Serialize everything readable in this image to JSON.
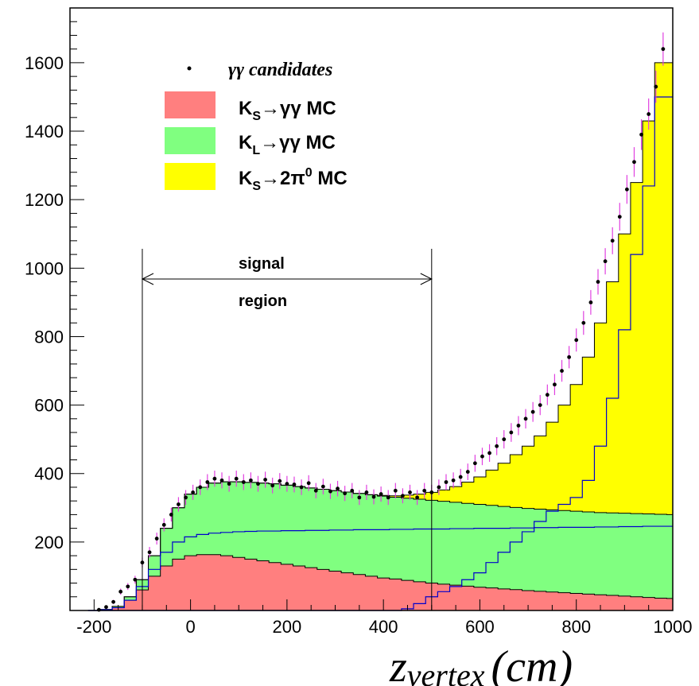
{
  "chart_data": {
    "type": "histogram",
    "xlabel": "z",
    "xlabel_sub": "vertex",
    "xlabel_unit": "(cm)",
    "xlim": [
      -250,
      1000
    ],
    "ylim": [
      0,
      1760
    ],
    "x_ticks": [
      -200,
      0,
      200,
      400,
      600,
      800,
      1000
    ],
    "x_tick_labels": [
      "-200",
      "0",
      "200",
      "400",
      "600",
      "800",
      "1000"
    ],
    "y_ticks": [
      200,
      400,
      600,
      800,
      1000,
      1200,
      1400,
      1600
    ],
    "y_tick_labels": [
      "200",
      "400",
      "600",
      "800",
      "1000",
      "1200",
      "1400",
      "1600"
    ],
    "legend_placement": "top-left",
    "legend": [
      {
        "label_main": "γγ",
        "label_rest": " candidates",
        "style": "italic",
        "marker": "point",
        "color": "#000000"
      },
      {
        "label_main": "K",
        "sub": "S",
        "label_rest": "→γγ MC",
        "marker": "fill",
        "color": "#ff7f7f"
      },
      {
        "label_main": "K",
        "sub": "L",
        "label_rest": "→γγ MC",
        "marker": "fill",
        "color": "#80ff80"
      },
      {
        "label_main": "K",
        "sub": "S",
        "label_rest": "→2π",
        "sup": "0",
        "label_tail": " MC",
        "marker": "fill",
        "color": "#ffff00"
      }
    ],
    "annotation": {
      "line1": "signal",
      "line2": "region",
      "x_range": [
        -100,
        500
      ]
    },
    "x": [
      -200,
      -175,
      -150,
      -125,
      -100,
      -75,
      -50,
      -25,
      0,
      25,
      50,
      75,
      100,
      125,
      150,
      175,
      200,
      225,
      250,
      275,
      300,
      325,
      350,
      375,
      400,
      425,
      450,
      475,
      500,
      525,
      550,
      575,
      600,
      625,
      650,
      675,
      700,
      725,
      750,
      775,
      800,
      825,
      850,
      875,
      900,
      925,
      950,
      975,
      1000
    ],
    "series": [
      {
        "name": "K_S→γγ MC",
        "color": "#ff7f7f",
        "values": [
          0,
          2,
          8,
          30,
          60,
          100,
          130,
          150,
          160,
          163,
          163,
          160,
          155,
          150,
          145,
          140,
          135,
          130,
          125,
          120,
          115,
          110,
          105,
          100,
          95,
          92,
          88,
          84,
          80,
          77,
          74,
          71,
          68,
          66,
          63,
          61,
          58,
          56,
          54,
          52,
          50,
          48,
          46,
          44,
          42,
          40,
          38,
          36,
          35
        ]
      },
      {
        "name": "K_L→γγ MC",
        "color": "#80ff80",
        "values": [
          0,
          3,
          12,
          40,
          90,
          160,
          240,
          300,
          340,
          360,
          372,
          376,
          376,
          374,
          372,
          370,
          366,
          362,
          358,
          354,
          350,
          346,
          342,
          338,
          334,
          331,
          328,
          325,
          322,
          319,
          316,
          313,
          310,
          307,
          304,
          301,
          298,
          296,
          294,
          292,
          290,
          288,
          286,
          285,
          284,
          283,
          282,
          281,
          280
        ]
      },
      {
        "name": "K_S→2π0 MC",
        "color": "#ffff00",
        "values": [
          0,
          3,
          12,
          40,
          90,
          160,
          240,
          300,
          340,
          360,
          372,
          376,
          376,
          374,
          372,
          370,
          366,
          362,
          358,
          354,
          350,
          346,
          342,
          338,
          336,
          335,
          337,
          340,
          345,
          352,
          362,
          375,
          390,
          410,
          430,
          455,
          480,
          510,
          550,
          600,
          660,
          740,
          840,
          960,
          1100,
          1250,
          1430,
          1600,
          1600
        ]
      },
      {
        "name": "blue outline",
        "color": "#0000cc",
        "values": [
          0,
          2,
          8,
          30,
          70,
          120,
          170,
          200,
          215,
          222,
          226,
          228,
          230,
          231,
          232,
          232,
          233,
          233,
          234,
          234,
          235,
          235,
          236,
          236,
          236,
          237,
          237,
          238,
          238,
          238,
          239,
          239,
          240,
          240,
          240,
          241,
          241,
          242,
          242,
          243,
          243,
          243,
          244,
          244,
          245,
          245,
          246,
          246,
          246
        ]
      },
      {
        "name": "blue K_S 2π0",
        "color": "#0000cc",
        "values": [
          0,
          0,
          0,
          0,
          0,
          0,
          0,
          0,
          0,
          0,
          0,
          0,
          0,
          0,
          0,
          0,
          0,
          0,
          0,
          0,
          0,
          0,
          0,
          0,
          0,
          0,
          5,
          20,
          40,
          55,
          70,
          90,
          110,
          140,
          170,
          200,
          230,
          260,
          290,
          310,
          330,
          380,
          480,
          620,
          820,
          1040,
          1240,
          1500,
          1500
        ]
      }
    ],
    "candidates": [
      {
        "x": -190,
        "y": 2
      },
      {
        "x": -175,
        "y": 10
      },
      {
        "x": -160,
        "y": 25
      },
      {
        "x": -145,
        "y": 55
      },
      {
        "x": -130,
        "y": 70
      },
      {
        "x": -115,
        "y": 90
      },
      {
        "x": -100,
        "y": 140
      },
      {
        "x": -85,
        "y": 170
      },
      {
        "x": -70,
        "y": 210
      },
      {
        "x": -55,
        "y": 250
      },
      {
        "x": -40,
        "y": 280
      },
      {
        "x": -25,
        "y": 310
      },
      {
        "x": -10,
        "y": 330
      },
      {
        "x": 5,
        "y": 345
      },
      {
        "x": 20,
        "y": 360
      },
      {
        "x": 35,
        "y": 375
      },
      {
        "x": 50,
        "y": 385
      },
      {
        "x": 65,
        "y": 380
      },
      {
        "x": 80,
        "y": 370
      },
      {
        "x": 95,
        "y": 385
      },
      {
        "x": 110,
        "y": 375
      },
      {
        "x": 125,
        "y": 380
      },
      {
        "x": 140,
        "y": 370
      },
      {
        "x": 155,
        "y": 382
      },
      {
        "x": 170,
        "y": 365
      },
      {
        "x": 185,
        "y": 378
      },
      {
        "x": 200,
        "y": 370
      },
      {
        "x": 215,
        "y": 368
      },
      {
        "x": 230,
        "y": 360
      },
      {
        "x": 245,
        "y": 372
      },
      {
        "x": 260,
        "y": 350
      },
      {
        "x": 275,
        "y": 362
      },
      {
        "x": 290,
        "y": 348
      },
      {
        "x": 305,
        "y": 356
      },
      {
        "x": 320,
        "y": 342
      },
      {
        "x": 335,
        "y": 350
      },
      {
        "x": 350,
        "y": 330
      },
      {
        "x": 365,
        "y": 345
      },
      {
        "x": 380,
        "y": 332
      },
      {
        "x": 395,
        "y": 340
      },
      {
        "x": 410,
        "y": 330
      },
      {
        "x": 425,
        "y": 350
      },
      {
        "x": 440,
        "y": 335
      },
      {
        "x": 455,
        "y": 345
      },
      {
        "x": 470,
        "y": 330
      },
      {
        "x": 485,
        "y": 350
      },
      {
        "x": 500,
        "y": 345
      },
      {
        "x": 515,
        "y": 360
      },
      {
        "x": 530,
        "y": 375
      },
      {
        "x": 545,
        "y": 380
      },
      {
        "x": 560,
        "y": 390
      },
      {
        "x": 575,
        "y": 405
      },
      {
        "x": 590,
        "y": 430
      },
      {
        "x": 605,
        "y": 450
      },
      {
        "x": 620,
        "y": 460
      },
      {
        "x": 635,
        "y": 480
      },
      {
        "x": 650,
        "y": 500
      },
      {
        "x": 665,
        "y": 520
      },
      {
        "x": 680,
        "y": 540
      },
      {
        "x": 695,
        "y": 560
      },
      {
        "x": 710,
        "y": 580
      },
      {
        "x": 725,
        "y": 600
      },
      {
        "x": 740,
        "y": 630
      },
      {
        "x": 755,
        "y": 660
      },
      {
        "x": 770,
        "y": 700
      },
      {
        "x": 785,
        "y": 740
      },
      {
        "x": 800,
        "y": 790
      },
      {
        "x": 815,
        "y": 840
      },
      {
        "x": 830,
        "y": 900
      },
      {
        "x": 845,
        "y": 960
      },
      {
        "x": 860,
        "y": 1020
      },
      {
        "x": 875,
        "y": 1080
      },
      {
        "x": 890,
        "y": 1150
      },
      {
        "x": 905,
        "y": 1230
      },
      {
        "x": 920,
        "y": 1310
      },
      {
        "x": 935,
        "y": 1390
      },
      {
        "x": 950,
        "y": 1450
      },
      {
        "x": 965,
        "y": 1530
      },
      {
        "x": 980,
        "y": 1640
      }
    ]
  }
}
